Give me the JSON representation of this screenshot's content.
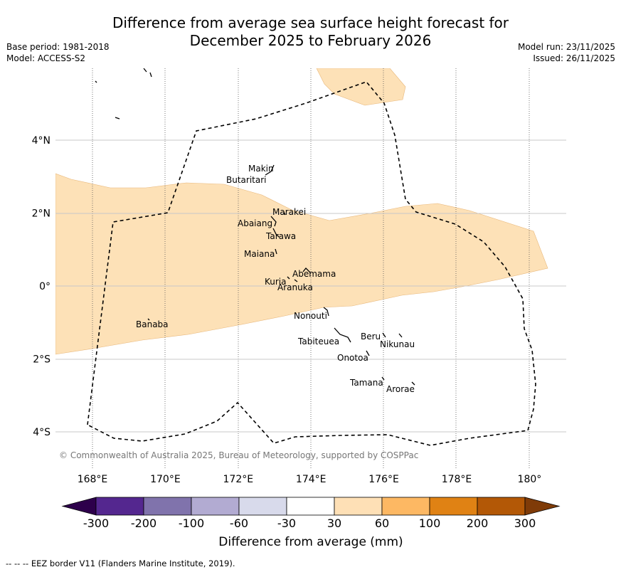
{
  "title": {
    "line1": "Difference from average sea surface height forecast for",
    "line2": "December 2025 to February 2026"
  },
  "meta_left": {
    "base_period": "Base period: 1981-2018",
    "model": "Model: ACCESS-S2"
  },
  "meta_right": {
    "model_run": "Model run: 23/11/2025",
    "issued": "Issued: 26/11/2025"
  },
  "map": {
    "lon_range": [
      167,
      181
    ],
    "lat_range": [
      -5,
      6
    ],
    "lon_ticks": [
      168,
      170,
      172,
      174,
      176,
      178,
      180
    ],
    "lon_labels": [
      "168°E",
      "170°E",
      "172°E",
      "174°E",
      "176°E",
      "178°E",
      "180°"
    ],
    "lat_ticks": [
      4,
      2,
      0,
      -2,
      -4
    ],
    "lat_labels": [
      "4°N",
      "2°N",
      "0°",
      "2°S",
      "4°S"
    ],
    "islands": [
      {
        "name": "Makin",
        "lon": 172.9,
        "lat": 3.3
      },
      {
        "name": "Butaritari",
        "lon": 172.8,
        "lat": 3.1
      },
      {
        "name": "Marakei",
        "lon": 173.3,
        "lat": 2.0
      },
      {
        "name": "Abaiang",
        "lon": 173.0,
        "lat": 1.8
      },
      {
        "name": "Tarawa",
        "lon": 173.0,
        "lat": 1.4
      },
      {
        "name": "Maiana",
        "lon": 173.0,
        "lat": 0.95
      },
      {
        "name": "Abemama",
        "lon": 173.85,
        "lat": 0.45
      },
      {
        "name": "Kuria",
        "lon": 173.4,
        "lat": 0.22
      },
      {
        "name": "Aranuka",
        "lon": 173.6,
        "lat": 0.17
      },
      {
        "name": "Nonouti",
        "lon": 174.4,
        "lat": -0.65
      },
      {
        "name": "Banaba",
        "lon": 169.5,
        "lat": -0.85
      },
      {
        "name": "Tabiteuea",
        "lon": 174.8,
        "lat": -1.3
      },
      {
        "name": "Beru",
        "lon": 176.0,
        "lat": -1.35
      },
      {
        "name": "Nikunau",
        "lon": 176.45,
        "lat": -1.4
      },
      {
        "name": "Onotoa",
        "lon": 175.55,
        "lat": -1.8
      },
      {
        "name": "Tamana",
        "lon": 176.0,
        "lat": -2.5
      },
      {
        "name": "Arorae",
        "lon": 176.8,
        "lat": -2.65
      }
    ],
    "copyright": "© Commonwealth of Australia 2025, Bureau of Meteorology, supported by COSPPac",
    "anomaly_fill": "#fde1b7",
    "anomaly_edge": "#e8b77a"
  },
  "colorbar": {
    "bins": [
      {
        "from": "-300",
        "color": "#54278f"
      },
      {
        "from": "-200",
        "color": "#8073ac"
      },
      {
        "from": "-100",
        "color": "#b2abd2"
      },
      {
        "from": "-60",
        "color": "#d8daeb"
      },
      {
        "from": "-30",
        "color": "#ffffff"
      },
      {
        "from": "30",
        "color": "#fee0b6"
      },
      {
        "from": "60",
        "color": "#fdb863"
      },
      {
        "from": "100",
        "color": "#e08214"
      },
      {
        "from": "200",
        "color": "#b35806"
      }
    ],
    "last_label": "300",
    "under_color": "#2d004b",
    "over_color": "#7f3b08",
    "label": "Difference from average (mm)"
  },
  "footer": "--  --  -- EEZ border V11 (Flanders Marine Institute, 2019)."
}
